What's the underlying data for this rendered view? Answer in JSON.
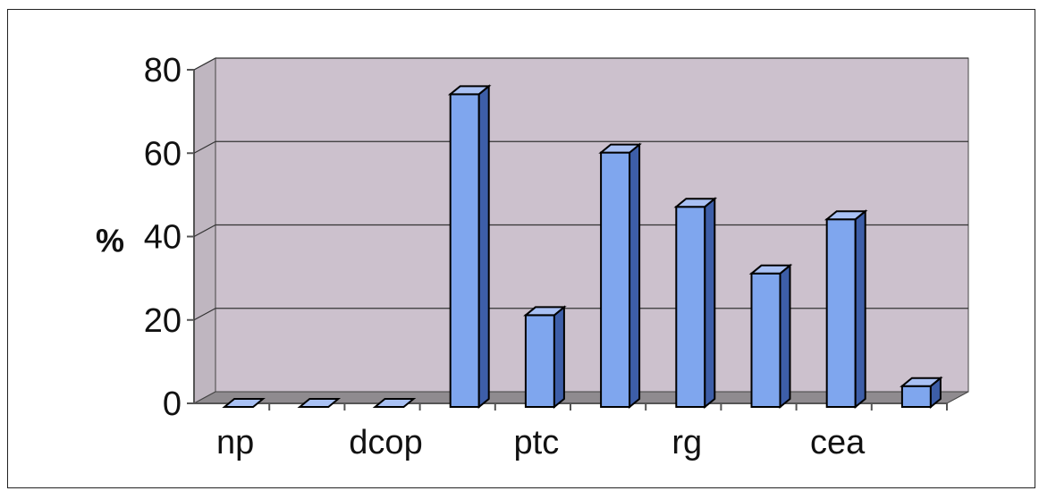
{
  "chart_data": {
    "type": "bar",
    "title": "",
    "xlabel": "",
    "ylabel": "%",
    "ylim": [
      0,
      80
    ],
    "yticks": [
      0,
      20,
      40,
      60,
      80
    ],
    "grid": true,
    "categories": [
      "np",
      "",
      "dcop",
      "",
      "ptc",
      "",
      "rg",
      "",
      "cea",
      ""
    ],
    "values": [
      0,
      0,
      0,
      75,
      22,
      61,
      48,
      32,
      45,
      5
    ],
    "colors": {
      "bar_front": "#7fa6ee",
      "bar_side": "#3d5ea8",
      "bar_top": "#a9c1f4",
      "wall": "#ccc1cd",
      "floor": "#8f8b8f",
      "gridline": "#333333"
    }
  }
}
